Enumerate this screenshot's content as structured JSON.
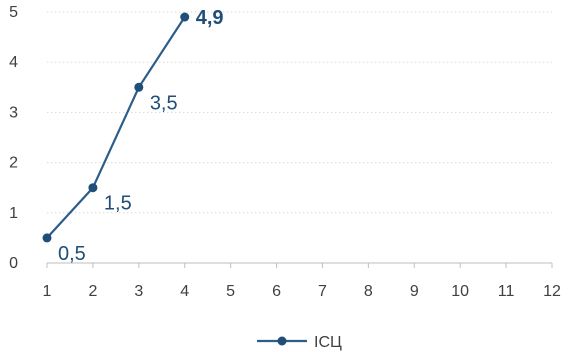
{
  "chart_data": {
    "type": "line",
    "x": [
      1,
      2,
      3,
      4
    ],
    "series": [
      {
        "name": "ІСЦ",
        "values": [
          0.5,
          1.5,
          3.5,
          4.9
        ],
        "color": "#2E5C8A"
      }
    ],
    "data_labels": [
      "0,5",
      "1,5",
      "3,5",
      "4,9"
    ],
    "x_ticks": [
      "1",
      "2",
      "3",
      "4",
      "5",
      "6",
      "7",
      "8",
      "9",
      "10",
      "11",
      "12"
    ],
    "y_ticks": [
      "0",
      "1",
      "2",
      "3",
      "4",
      "5"
    ],
    "xlim": [
      1,
      12
    ],
    "ylim": [
      0,
      5
    ],
    "grid": "horizontal-dotted",
    "legend_position": "bottom-center",
    "axis_color": "#BFBFBF",
    "grid_color": "#D9D9D9",
    "text_color": "#404040",
    "label_color": "#1F4E79"
  }
}
